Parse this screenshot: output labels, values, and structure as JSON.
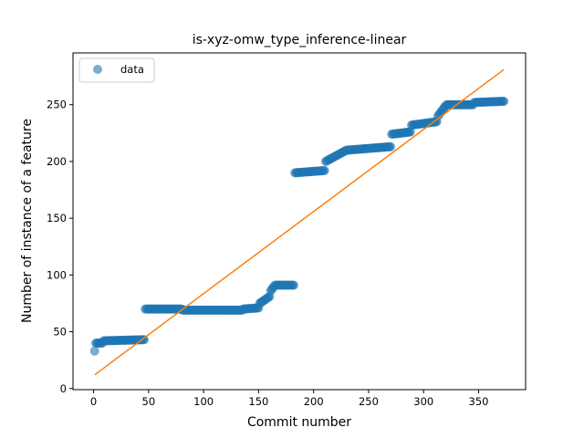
{
  "chart_data": {
    "type": "scatter",
    "title": "is-xyz-omw_type_inference-linear",
    "xlabel": "Commit number",
    "ylabel": "Number of instance of a feature",
    "xlim": [
      -18.7,
      392.7
    ],
    "ylim": [
      -1,
      295.6
    ],
    "xticks": [
      0,
      50,
      100,
      150,
      200,
      250,
      300,
      350
    ],
    "yticks": [
      0,
      50,
      100,
      150,
      200,
      250
    ],
    "legend": {
      "placement": "top-left",
      "entries": [
        "data"
      ]
    },
    "grid": false,
    "colors": {
      "data": "#1f77b4",
      "fit": "#ff7f0e"
    },
    "data_segments": [
      {
        "x_start": 1,
        "x_end": 1,
        "y_start": 33,
        "y_end": 33
      },
      {
        "x_start": 2,
        "x_end": 8,
        "y_start": 40,
        "y_end": 40
      },
      {
        "x_start": 9,
        "x_end": 46,
        "y_start": 42,
        "y_end": 43
      },
      {
        "x_start": 47,
        "x_end": 80,
        "y_start": 70,
        "y_end": 70
      },
      {
        "x_start": 81,
        "x_end": 135,
        "y_start": 69,
        "y_end": 69
      },
      {
        "x_start": 136,
        "x_end": 150,
        "y_start": 70,
        "y_end": 71
      },
      {
        "x_start": 151,
        "x_end": 160,
        "y_start": 75,
        "y_end": 81
      },
      {
        "x_start": 161,
        "x_end": 164,
        "y_start": 86,
        "y_end": 90
      },
      {
        "x_start": 165,
        "x_end": 182,
        "y_start": 91,
        "y_end": 91
      },
      {
        "x_start": 183,
        "x_end": 210,
        "y_start": 190,
        "y_end": 192
      },
      {
        "x_start": 211,
        "x_end": 230,
        "y_start": 200,
        "y_end": 210
      },
      {
        "x_start": 231,
        "x_end": 270,
        "y_start": 210,
        "y_end": 213
      },
      {
        "x_start": 271,
        "x_end": 288,
        "y_start": 224,
        "y_end": 226
      },
      {
        "x_start": 289,
        "x_end": 312,
        "y_start": 232,
        "y_end": 235
      },
      {
        "x_start": 313,
        "x_end": 320,
        "y_start": 240,
        "y_end": 249
      },
      {
        "x_start": 321,
        "x_end": 345,
        "y_start": 250,
        "y_end": 250
      },
      {
        "x_start": 346,
        "x_end": 373,
        "y_start": 252,
        "y_end": 253
      }
    ],
    "fit_line": {
      "x": [
        1,
        373
      ],
      "y": [
        12,
        281
      ]
    }
  }
}
